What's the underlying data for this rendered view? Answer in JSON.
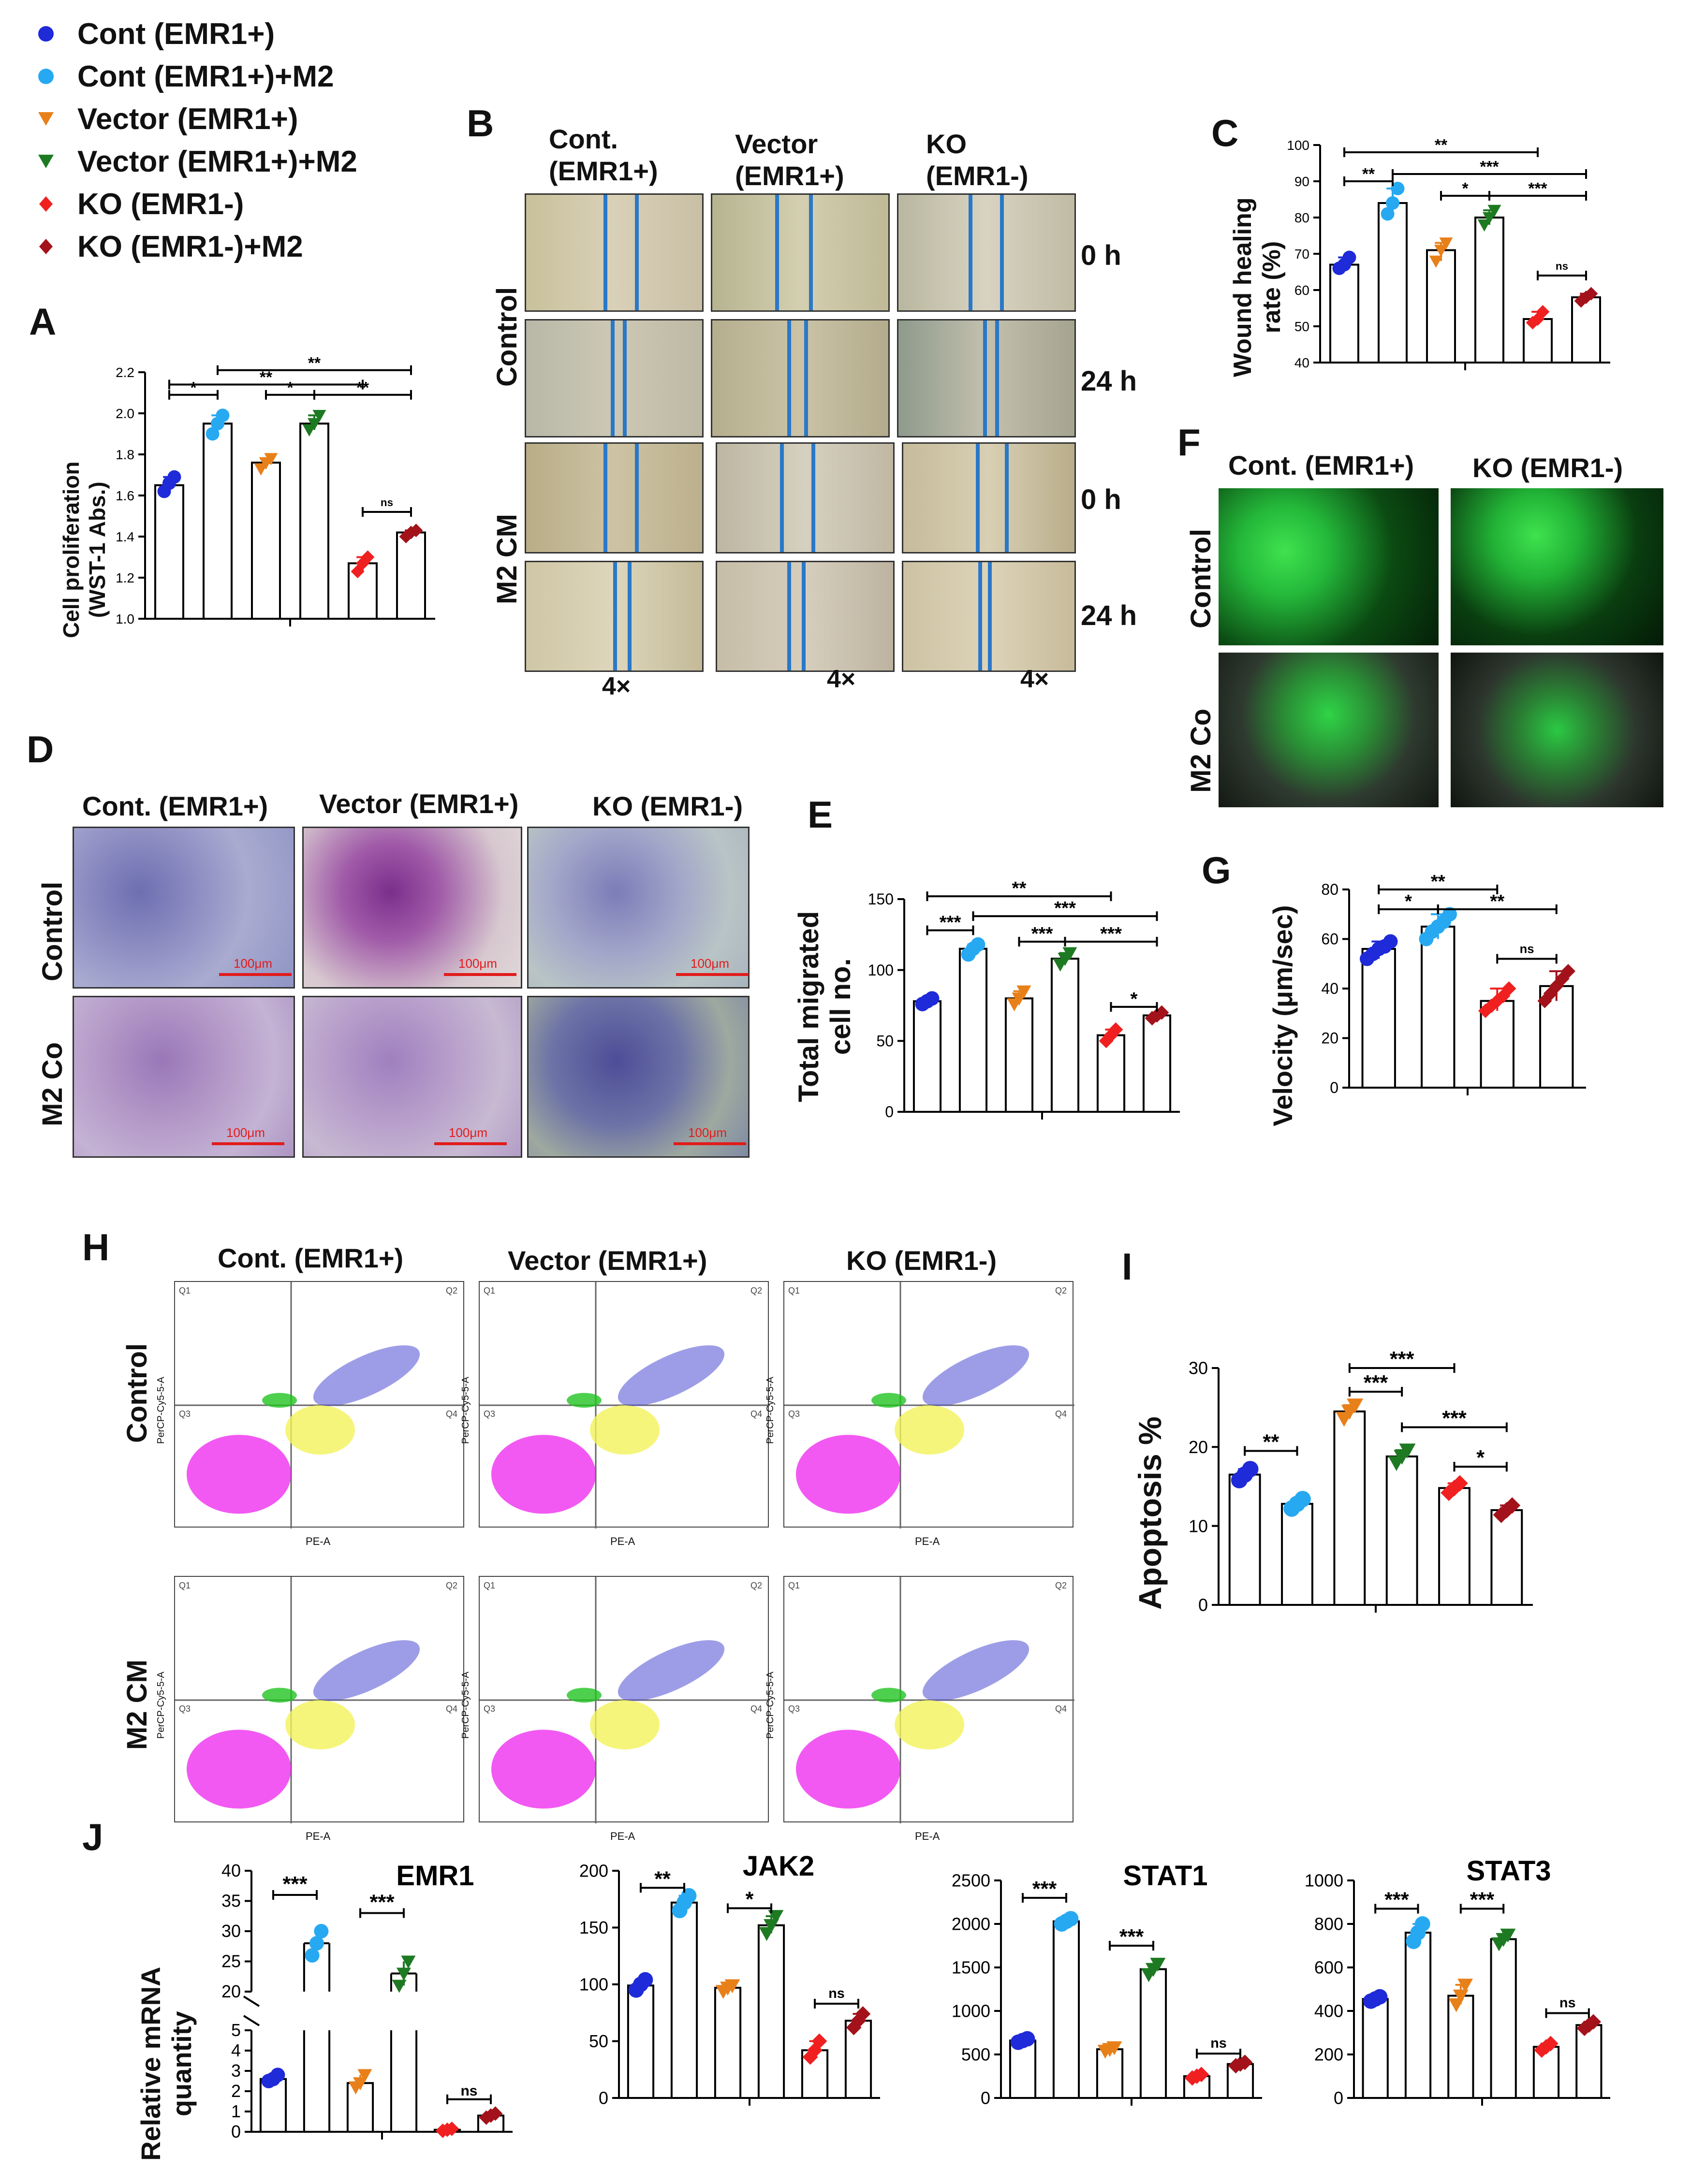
{
  "legend": [
    {
      "label": "Cont (EMR1+)",
      "color": "#1f2ad8",
      "shape": "circle"
    },
    {
      "label": "Cont (EMR1+)+M2",
      "color": "#27a9f2",
      "shape": "circle"
    },
    {
      "label": "Vector (EMR1+)",
      "color": "#e8801a",
      "shape": "triangle-down"
    },
    {
      "label": "Vector (EMR1+)+M2",
      "color": "#1e7a22",
      "shape": "triangle-down"
    },
    {
      "label": "KO (EMR1-)",
      "color": "#f02020",
      "shape": "diamond"
    },
    {
      "label": "KO (EMR1-)+M2",
      "color": "#a3121a",
      "shape": "diamond"
    }
  ],
  "panels": {
    "A": "A",
    "B": "B",
    "C": "C",
    "D": "D",
    "E": "E",
    "F": "F",
    "G": "G",
    "H": "H",
    "I": "I",
    "J": "J"
  },
  "panel_b": {
    "columns": [
      "Cont.\n(EMR1+)",
      "Vector\n(EMR1+)",
      "KO\n(EMR1-)"
    ],
    "col1_l1": "Cont.",
    "col1_l2": "(EMR1+)",
    "col2_l1": "Vector",
    "col2_l2": "(EMR1+)",
    "col3_l1": "KO",
    "col3_l2": "(EMR1-)",
    "row_control": "Control",
    "row_m2": "M2 CM",
    "t0": "0 h",
    "t24": "24 h",
    "mag": "4×"
  },
  "panel_d": {
    "col1": "Cont. (EMR1+)",
    "col2": "Vector (EMR1+)",
    "col3": "KO (EMR1-)",
    "row_control": "Control",
    "row_m2": "M2 Co",
    "scale": "100μm"
  },
  "panel_f": {
    "col1": "Cont. (EMR1+)",
    "col2": "KO (EMR1-)",
    "row_control": "Control",
    "row_m2": "M2 Co"
  },
  "panel_h": {
    "col1": "Cont. (EMR1+)",
    "col2": "Vector (EMR1+)",
    "col3": "KO (EMR1-)",
    "row_control": "Control",
    "row_m2": "M2 CM",
    "xaxis": "PE-A",
    "yaxis": "PerCP-Cy5-5-A",
    "quadrants": [
      "Q1",
      "Q2",
      "Q3",
      "Q4"
    ]
  },
  "colors": {
    "blue": "#1f2ad8",
    "lightblue": "#27a9f2",
    "orange": "#e8801a",
    "green": "#1e7a22",
    "red": "#f02020",
    "darkred": "#a3121a"
  },
  "chart_data": [
    {
      "id": "A",
      "type": "bar",
      "ylabel": "Cell proliferation\n(WST-1 Abs.)",
      "ylabel_l1": "Cell proliferation",
      "ylabel_l2": "(WST-1 Abs.)",
      "ylim": [
        1.0,
        2.2
      ],
      "yticks": [
        "1.0",
        "1.2",
        "1.4",
        "1.6",
        "1.8",
        "2.0",
        "2.2"
      ],
      "values": [
        1.65,
        1.95,
        1.76,
        1.95,
        1.27,
        1.42
      ],
      "points": [
        [
          1.62,
          1.66,
          1.69
        ],
        [
          1.9,
          1.95,
          1.99
        ],
        [
          1.73,
          1.76,
          1.78
        ],
        [
          1.92,
          1.95,
          1.99
        ],
        [
          1.23,
          1.27,
          1.3
        ],
        [
          1.4,
          1.42,
          1.43
        ]
      ],
      "sig": [
        {
          "from": 0,
          "to": 1,
          "label": "*",
          "level": 2.09
        },
        {
          "from": 2,
          "to": 3,
          "label": "*",
          "level": 2.09
        },
        {
          "from": 3,
          "to": 5,
          "label": "**",
          "level": 2.09
        },
        {
          "from": 0,
          "to": 4,
          "label": "**",
          "level": 2.14
        },
        {
          "from": 1,
          "to": 5,
          "label": "**",
          "level": 2.21
        },
        {
          "from": 4,
          "to": 5,
          "label": "ns",
          "level": 1.52
        }
      ]
    },
    {
      "id": "C",
      "type": "bar",
      "ylabel": "Wound healing\nrate (%)",
      "ylabel_l1": "Wound healing",
      "ylabel_l2": "rate (%)",
      "ylim": [
        40,
        100
      ],
      "yticks": [
        "40",
        "50",
        "60",
        "70",
        "80",
        "90",
        "100"
      ],
      "values": [
        67,
        84,
        71,
        80,
        52,
        58
      ],
      "points": [
        [
          66,
          67,
          69
        ],
        [
          81,
          84,
          88
        ],
        [
          68,
          71,
          73
        ],
        [
          78,
          80,
          82
        ],
        [
          51,
          52,
          54
        ],
        [
          57,
          58,
          59
        ]
      ],
      "sig": [
        {
          "from": 0,
          "to": 1,
          "label": "**",
          "level": 90
        },
        {
          "from": 0,
          "to": 4,
          "label": "**",
          "level": 98
        },
        {
          "from": 1,
          "to": 5,
          "label": "***",
          "level": 92
        },
        {
          "from": 2,
          "to": 3,
          "label": "*",
          "level": 86
        },
        {
          "from": 3,
          "to": 5,
          "label": "***",
          "level": 86
        },
        {
          "from": 4,
          "to": 5,
          "label": "ns",
          "level": 64
        }
      ]
    },
    {
      "id": "E",
      "type": "bar",
      "ylabel": "Total migrated\ncell no.",
      "ylabel_l1": "Total migrated",
      "ylabel_l2": "cell no.",
      "ylim": [
        0,
        150
      ],
      "yticks": [
        "0",
        "50",
        "100",
        "150"
      ],
      "values": [
        78,
        115,
        80,
        108,
        54,
        68
      ],
      "points": [
        [
          76,
          78,
          80
        ],
        [
          111,
          115,
          118
        ],
        [
          76,
          80,
          85
        ],
        [
          104,
          108,
          112
        ],
        [
          50,
          54,
          58
        ],
        [
          66,
          68,
          70
        ]
      ],
      "sig": [
        {
          "from": 0,
          "to": 1,
          "label": "***",
          "level": 128
        },
        {
          "from": 0,
          "to": 4,
          "label": "**",
          "level": 152
        },
        {
          "from": 1,
          "to": 5,
          "label": "***",
          "level": 138
        },
        {
          "from": 2,
          "to": 3,
          "label": "***",
          "level": 120
        },
        {
          "from": 3,
          "to": 5,
          "label": "***",
          "level": 120
        },
        {
          "from": 4,
          "to": 5,
          "label": "*",
          "level": 74
        }
      ]
    },
    {
      "id": "G",
      "type": "bar",
      "ylabel": "Velocity (μm/sec)",
      "ylim": [
        0,
        80
      ],
      "yticks": [
        "0",
        "20",
        "40",
        "60",
        "80"
      ],
      "values": [
        56,
        65,
        35,
        41
      ],
      "series_colors": [
        "#1f2ad8",
        "#27a9f2",
        "#f02020",
        "#a3121a"
      ],
      "points": [
        [
          52,
          54,
          56,
          57,
          59
        ],
        [
          60,
          63,
          65,
          67,
          70
        ],
        [
          31,
          33,
          35,
          37,
          40
        ],
        [
          35,
          38,
          41,
          44,
          47
        ]
      ],
      "sig": [
        {
          "from": 0,
          "to": 1,
          "label": "*",
          "level": 72
        },
        {
          "from": 0,
          "to": 2,
          "label": "**",
          "level": 80
        },
        {
          "from": 1,
          "to": 3,
          "label": "**",
          "level": 72
        },
        {
          "from": 2,
          "to": 3,
          "label": "ns",
          "level": 52
        }
      ]
    },
    {
      "id": "I",
      "type": "bar",
      "ylabel": "Apoptosis %",
      "ylim": [
        0,
        30
      ],
      "yticks": [
        "0",
        "10",
        "20",
        "30"
      ],
      "values": [
        16.5,
        12.8,
        24.5,
        18.8,
        14.8,
        12.0
      ],
      "points": [
        [
          15.8,
          16.5,
          17.2
        ],
        [
          12.2,
          12.8,
          13.4
        ],
        [
          23.6,
          24.5,
          25.3
        ],
        [
          18.0,
          18.8,
          19.6
        ],
        [
          14.2,
          14.8,
          15.4
        ],
        [
          11.4,
          12.0,
          12.6
        ]
      ],
      "sig": [
        {
          "from": 0,
          "to": 1,
          "label": "**",
          "level": 19.5
        },
        {
          "from": 2,
          "to": 3,
          "label": "***",
          "level": 27
        },
        {
          "from": 2,
          "to": 4,
          "label": "***",
          "level": 30
        },
        {
          "from": 3,
          "to": 5,
          "label": "***",
          "level": 22.5
        },
        {
          "from": 4,
          "to": 5,
          "label": "*",
          "level": 17.5
        }
      ]
    },
    {
      "id": "J-EMR1",
      "type": "bar",
      "title": "EMR1",
      "ylabel": "Relative mRNA\nquantity",
      "ylabel_l1": "Relative mRNA",
      "ylabel_l2": "quantity",
      "broken_axis": true,
      "lower_yticks": [
        "0",
        "1",
        "2",
        "3",
        "4",
        "5"
      ],
      "upper_yticks": [
        "20",
        "25",
        "30",
        "35",
        "40"
      ],
      "values": [
        2.6,
        28,
        2.4,
        23,
        0.1,
        0.8
      ],
      "points": [
        [
          2.5,
          2.6,
          2.8
        ],
        [
          26,
          28,
          30
        ],
        [
          2.2,
          2.4,
          2.8
        ],
        [
          21,
          23,
          25
        ],
        [
          0.05,
          0.1,
          0.15
        ],
        [
          0.7,
          0.8,
          0.9
        ]
      ],
      "sig": [
        {
          "from": 0,
          "to": 1,
          "label": "***",
          "level": 36
        },
        {
          "from": 2,
          "to": 3,
          "label": "***",
          "level": 33
        },
        {
          "from": 4,
          "to": 5,
          "label": "ns",
          "level": 1.6
        }
      ]
    },
    {
      "id": "J-JAK2",
      "type": "bar",
      "title": "JAK2",
      "ylim": [
        0,
        200
      ],
      "yticks": [
        "0",
        "50",
        "100",
        "150",
        "200"
      ],
      "values": [
        99,
        172,
        97,
        152,
        42,
        68
      ],
      "points": [
        [
          95,
          100,
          104
        ],
        [
          165,
          172,
          178
        ],
        [
          94,
          97,
          99
        ],
        [
          145,
          152,
          160
        ],
        [
          36,
          42,
          50
        ],
        [
          62,
          68,
          74
        ]
      ],
      "sig": [
        {
          "from": 0,
          "to": 1,
          "label": "**",
          "level": 185
        },
        {
          "from": 2,
          "to": 3,
          "label": "*",
          "level": 167
        },
        {
          "from": 4,
          "to": 5,
          "label": "ns",
          "level": 83
        }
      ]
    },
    {
      "id": "J-STAT1",
      "type": "bar",
      "title": "STAT1",
      "ylim": [
        0,
        2500
      ],
      "yticks": [
        "0",
        "500",
        "1000",
        "1500",
        "2000",
        "2500"
      ],
      "values": [
        660,
        2030,
        560,
        1480,
        250,
        390
      ],
      "points": [
        [
          640,
          660,
          680
        ],
        [
          2000,
          2030,
          2060
        ],
        [
          540,
          560,
          580
        ],
        [
          1420,
          1480,
          1540
        ],
        [
          230,
          250,
          270
        ],
        [
          370,
          390,
          410
        ]
      ],
      "sig": [
        {
          "from": 0,
          "to": 1,
          "label": "***",
          "level": 2300
        },
        {
          "from": 2,
          "to": 3,
          "label": "***",
          "level": 1750
        },
        {
          "from": 4,
          "to": 5,
          "label": "ns",
          "level": 510
        }
      ]
    },
    {
      "id": "J-STAT3",
      "type": "bar",
      "title": "STAT3",
      "ylim": [
        0,
        1000
      ],
      "yticks": [
        "0",
        "200",
        "400",
        "600",
        "800",
        "1000"
      ],
      "values": [
        455,
        760,
        470,
        730,
        235,
        335
      ],
      "points": [
        [
          445,
          455,
          465
        ],
        [
          720,
          760,
          800
        ],
        [
          430,
          470,
          520
        ],
        [
          710,
          730,
          750
        ],
        [
          220,
          235,
          250
        ],
        [
          320,
          335,
          350
        ]
      ],
      "sig": [
        {
          "from": 0,
          "to": 1,
          "label": "***",
          "level": 870
        },
        {
          "from": 2,
          "to": 3,
          "label": "***",
          "level": 870
        },
        {
          "from": 4,
          "to": 5,
          "label": "ns",
          "level": 390
        }
      ]
    }
  ]
}
